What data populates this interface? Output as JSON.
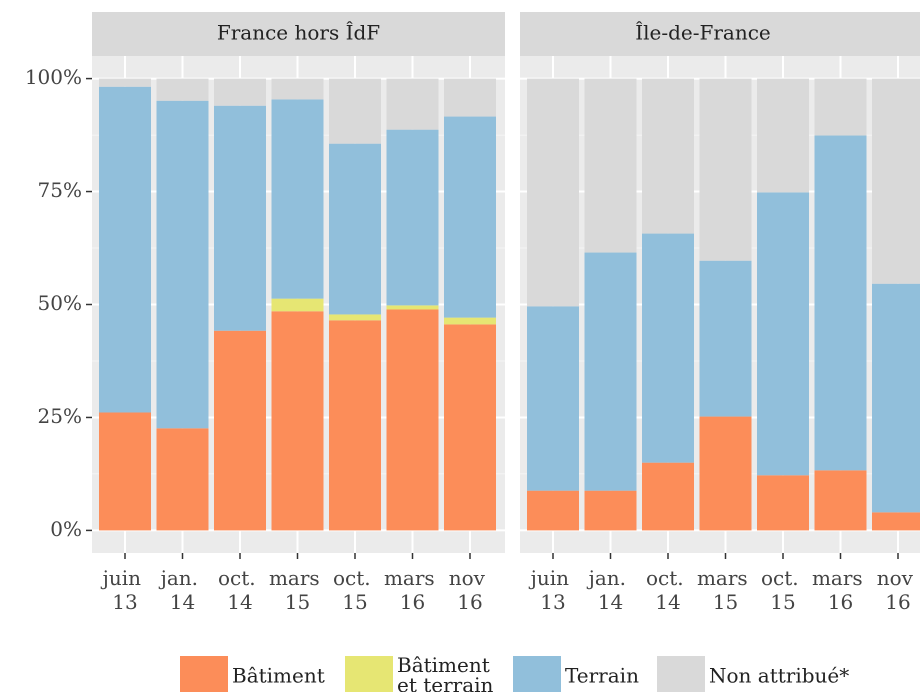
{
  "chart_data": {
    "type": "bar",
    "stacked": true,
    "ylim": [
      -5,
      105
    ],
    "yticks": [
      {
        "value": 0,
        "label": "0%"
      },
      {
        "value": 25,
        "label": "25%"
      },
      {
        "value": 50,
        "label": "50%"
      },
      {
        "value": 75,
        "label": "75%"
      },
      {
        "value": 100,
        "label": "100%"
      }
    ],
    "grid": true,
    "legend": "bottom",
    "series": [
      {
        "name": "Bâtiment",
        "color": "#fc8d59"
      },
      {
        "name": "Bâtiment et terrain",
        "color": "#e6e673"
      },
      {
        "name": "Terrain",
        "color": "#91bfdb"
      },
      {
        "name": "Non attribué*",
        "color": "#d9d9d9"
      }
    ],
    "facets": [
      {
        "title": "France hors ÎdF",
        "categories": [
          "juin 13",
          "jan. 14",
          "oct. 14",
          "mars 15",
          "oct. 15",
          "mars 16",
          "nov 16"
        ],
        "values": [
          [
            26.1,
            22.6,
            44.2,
            48.5,
            46.5,
            48.9,
            45.6
          ],
          [
            0,
            0,
            0,
            2.8,
            1.3,
            0.9,
            1.5
          ],
          [
            72.1,
            72.5,
            49.8,
            44.1,
            37.8,
            38.9,
            44.5
          ],
          [
            1.8,
            4.9,
            6.0,
            4.6,
            14.4,
            11.3,
            8.4
          ]
        ]
      },
      {
        "title": "Île-de-France",
        "categories": [
          "juin 13",
          "jan. 14",
          "oct. 14",
          "mars 15",
          "oct. 15",
          "mars 16",
          "nov 16"
        ],
        "values": [
          [
            8.8,
            8.8,
            15.0,
            25.2,
            12.2,
            13.3,
            4.0
          ],
          [
            0,
            0,
            0,
            0,
            0,
            0,
            0
          ],
          [
            40.8,
            52.7,
            50.7,
            34.5,
            62.6,
            74.1,
            50.6
          ],
          [
            50.4,
            38.5,
            34.3,
            40.3,
            25.2,
            12.6,
            45.4
          ]
        ]
      }
    ]
  }
}
